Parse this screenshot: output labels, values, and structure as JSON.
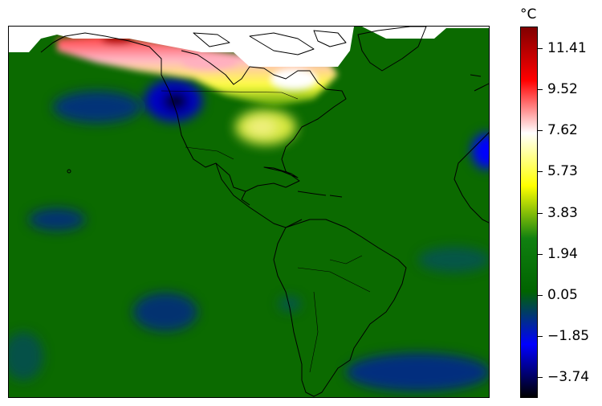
{
  "map": {
    "type": "filled-contour anomaly map",
    "projection": "equirectangular",
    "region": "Americas (approx. 170W–10W, 60S–80N)",
    "background_level_color": "#0b6a00",
    "features": [
      {
        "name": "strong-warm-anomaly",
        "location": "northern Canada",
        "approx_value": 11.5
      },
      {
        "name": "cold-anomaly",
        "location": "Pacific Northwest / British Columbia coast",
        "approx_value": -3.7
      },
      {
        "name": "warm-anomaly",
        "location": "Great Lakes / Ohio valley",
        "approx_value": 5.0
      },
      {
        "name": "cold-anomaly",
        "location": "West Africa coast",
        "approx_value": -1.8
      }
    ]
  },
  "colorbar": {
    "unit": "°C",
    "min": -4.7,
    "max": 12.4,
    "ticks": [
      "−3.74",
      "−1.85",
      "0.05",
      "1.94",
      "3.83",
      "5.73",
      "7.62",
      "9.52",
      "11.41"
    ],
    "colors": [
      "#000000",
      "#0000ff",
      "#006400",
      "#108010",
      "#ffff00",
      "#ffffff",
      "#ff0000",
      "#800000"
    ]
  }
}
